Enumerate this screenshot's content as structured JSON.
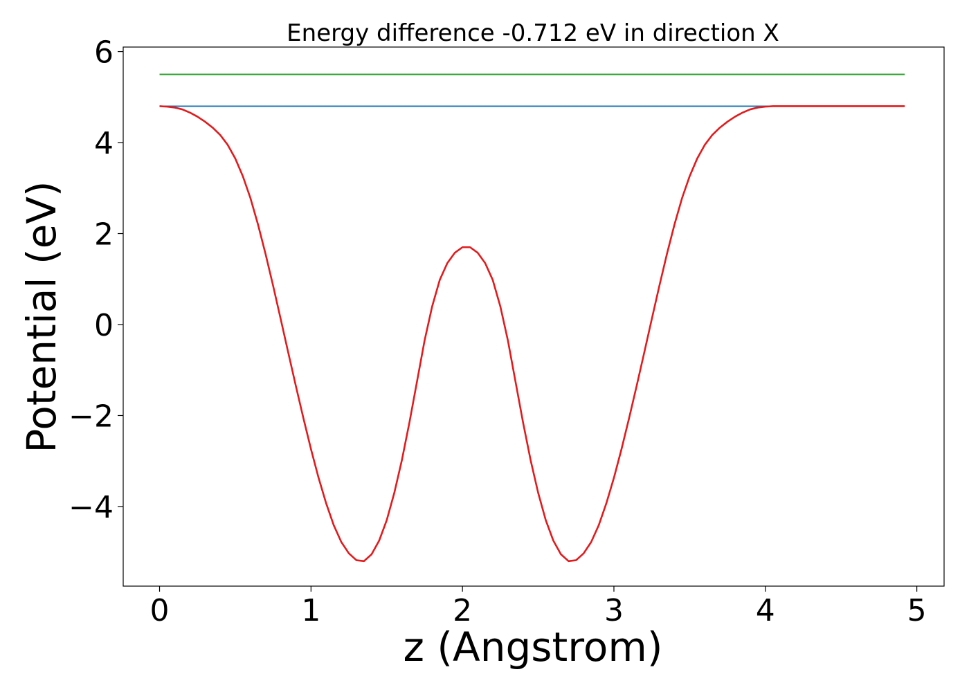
{
  "chart_data": {
    "type": "line",
    "title": "Energy difference -0.712 eV in direction X",
    "xlabel": "z (Angstrom)",
    "ylabel": "Potential (eV)",
    "xlim": [
      -0.24,
      5.18
    ],
    "ylim": [
      -5.75,
      6.1
    ],
    "x_ticks": [
      0,
      1,
      2,
      3,
      4,
      5
    ],
    "x_tick_labels": [
      "0",
      "1",
      "2",
      "3",
      "4",
      "5"
    ],
    "y_ticks": [
      -4,
      -2,
      0,
      2,
      4,
      6
    ],
    "y_tick_labels": [
      "−4",
      "−2",
      "0",
      "2",
      "4",
      "6"
    ],
    "grid": false,
    "series": [
      {
        "color": "#2ca02c",
        "x": [
          0,
          4.92
        ],
        "y": [
          5.5,
          5.5
        ]
      },
      {
        "color": "#1f77b4",
        "x": [
          0,
          4.92
        ],
        "y": [
          4.8,
          4.8
        ]
      },
      {
        "color": "#e31a1c",
        "x": [
          0,
          0.05,
          0.1,
          0.15,
          0.2,
          0.25,
          0.3,
          0.35,
          0.4,
          0.45,
          0.5,
          0.55,
          0.6,
          0.65,
          0.7,
          0.75,
          0.8,
          0.85,
          0.9,
          0.95,
          1.0,
          1.05,
          1.1,
          1.15,
          1.2,
          1.25,
          1.3,
          1.35,
          1.4,
          1.45,
          1.5,
          1.55,
          1.6,
          1.65,
          1.7,
          1.75,
          1.8,
          1.85,
          1.9,
          1.95,
          2.0,
          2.05,
          2.1,
          2.15,
          2.2,
          2.25,
          2.3,
          2.35,
          2.4,
          2.45,
          2.5,
          2.55,
          2.6,
          2.65,
          2.7,
          2.75,
          2.8,
          2.85,
          2.9,
          2.95,
          3.0,
          3.05,
          3.1,
          3.15,
          3.2,
          3.25,
          3.3,
          3.35,
          3.4,
          3.45,
          3.5,
          3.55,
          3.6,
          3.65,
          3.7,
          3.75,
          3.8,
          3.85,
          3.9,
          3.95,
          4.0,
          4.05,
          4.1,
          4.15,
          4.2,
          4.25,
          4.3,
          4.35,
          4.4,
          4.45,
          4.5,
          4.55,
          4.6,
          4.65,
          4.7,
          4.75,
          4.8,
          4.85,
          4.9,
          4.92
        ],
        "y": [
          4.8,
          4.79,
          4.77,
          4.73,
          4.66,
          4.57,
          4.46,
          4.33,
          4.17,
          3.95,
          3.65,
          3.26,
          2.78,
          2.2,
          1.55,
          0.85,
          0.12,
          -0.62,
          -1.35,
          -2.06,
          -2.74,
          -3.37,
          -3.93,
          -4.41,
          -4.78,
          -5.03,
          -5.18,
          -5.2,
          -5.05,
          -4.75,
          -4.3,
          -3.7,
          -2.98,
          -2.15,
          -1.25,
          -0.35,
          0.4,
          0.98,
          1.35,
          1.58,
          1.7,
          1.7,
          1.58,
          1.35,
          0.98,
          0.4,
          -0.35,
          -1.25,
          -2.15,
          -2.98,
          -3.7,
          -4.3,
          -4.75,
          -5.05,
          -5.2,
          -5.18,
          -5.03,
          -4.78,
          -4.41,
          -3.93,
          -3.37,
          -2.74,
          -2.06,
          -1.35,
          -0.62,
          0.12,
          0.85,
          1.55,
          2.2,
          2.78,
          3.26,
          3.65,
          3.95,
          4.17,
          4.33,
          4.46,
          4.57,
          4.66,
          4.73,
          4.77,
          4.79,
          4.8,
          4.8,
          4.8,
          4.8,
          4.8,
          4.8,
          4.8,
          4.8,
          4.8,
          4.8,
          4.8,
          4.8,
          4.8,
          4.8,
          4.8,
          4.8,
          4.8,
          4.8,
          4.8
        ]
      }
    ]
  }
}
